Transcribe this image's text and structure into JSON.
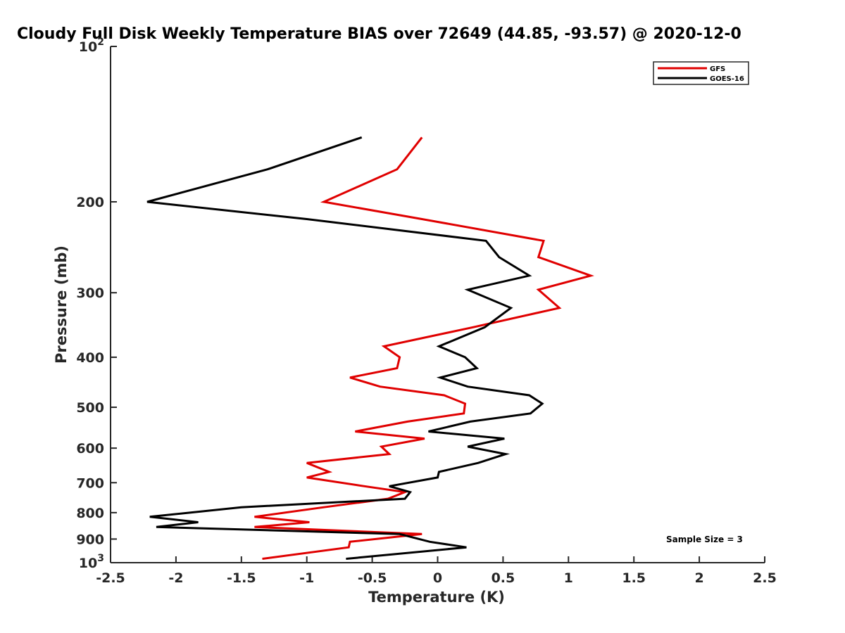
{
  "chart_data": {
    "type": "line",
    "title": "Cloudy Full Disk Weekly Temperature BIAS over 72649 (44.85, -93.57) @ 2020-12-0",
    "xlabel": "Temperature (K)",
    "ylabel": "Pressure (mb)",
    "xlim": [
      -2.5,
      2.5
    ],
    "ylim": [
      100,
      1000
    ],
    "y_scale": "log",
    "y_reversed": true,
    "x_ticks": [
      "-2.5",
      "-2",
      "-1.5",
      "-1",
      "-0.5",
      "0",
      "0.5",
      "1",
      "1.5",
      "2",
      "2.5"
    ],
    "y_ticks": [
      {
        "value": 100,
        "base": "10",
        "exp": "2"
      },
      {
        "value": 200,
        "label": "200"
      },
      {
        "value": 300,
        "label": "300"
      },
      {
        "value": 400,
        "label": "400"
      },
      {
        "value": 500,
        "label": "500"
      },
      {
        "value": 600,
        "label": "600"
      },
      {
        "value": 700,
        "label": "700"
      },
      {
        "value": 800,
        "label": "800"
      },
      {
        "value": 900,
        "label": "900"
      },
      {
        "value": 1000,
        "base": "10",
        "exp": "3"
      }
    ],
    "legend": {
      "placement": "top-right"
    },
    "annotation": "Sample Size = 3",
    "series": [
      {
        "name": "GFS",
        "color": "#e00000",
        "points": [
          [
            -0.12,
            150
          ],
          [
            -0.31,
            173
          ],
          [
            -0.87,
            200
          ],
          [
            -0.12,
            216
          ],
          [
            0.81,
            238
          ],
          [
            0.77,
            256
          ],
          [
            1.17,
            278
          ],
          [
            0.77,
            296
          ],
          [
            0.93,
            321
          ],
          [
            0.27,
            350
          ],
          [
            -0.41,
            381
          ],
          [
            -0.29,
            400
          ],
          [
            -0.31,
            420
          ],
          [
            -0.67,
            438
          ],
          [
            -0.44,
            456
          ],
          [
            0.05,
            474
          ],
          [
            0.21,
            492
          ],
          [
            0.2,
            514
          ],
          [
            -0.23,
            533
          ],
          [
            -0.63,
            557
          ],
          [
            -0.1,
            575
          ],
          [
            -0.43,
            596
          ],
          [
            -0.37,
            616
          ],
          [
            -1.0,
            641
          ],
          [
            -0.83,
            667
          ],
          [
            -1.0,
            684
          ],
          [
            -0.56,
            711
          ],
          [
            -0.25,
            730
          ],
          [
            -0.38,
            752
          ],
          [
            -0.87,
            781
          ],
          [
            -1.4,
            815
          ],
          [
            -0.98,
            835
          ],
          [
            -1.4,
            853
          ],
          [
            -0.12,
            880
          ],
          [
            -0.67,
            911
          ],
          [
            -0.68,
            934
          ],
          [
            -1.34,
            983
          ]
        ]
      },
      {
        "name": "GOES-16",
        "color": "#000000",
        "points": [
          [
            -0.58,
            150
          ],
          [
            -1.3,
            173
          ],
          [
            -2.22,
            200
          ],
          [
            -1.0,
            216
          ],
          [
            0.37,
            238
          ],
          [
            0.47,
            256
          ],
          [
            0.7,
            278
          ],
          [
            0.23,
            296
          ],
          [
            0.56,
            321
          ],
          [
            0.36,
            350
          ],
          [
            0.01,
            381
          ],
          [
            0.21,
            400
          ],
          [
            0.3,
            420
          ],
          [
            0.02,
            438
          ],
          [
            0.23,
            456
          ],
          [
            0.7,
            474
          ],
          [
            0.8,
            492
          ],
          [
            0.71,
            514
          ],
          [
            0.25,
            533
          ],
          [
            -0.07,
            557
          ],
          [
            0.51,
            575
          ],
          [
            0.23,
            596
          ],
          [
            0.52,
            616
          ],
          [
            0.31,
            641
          ],
          [
            0.01,
            667
          ],
          [
            0.0,
            684
          ],
          [
            -0.37,
            711
          ],
          [
            -0.21,
            730
          ],
          [
            -0.25,
            752
          ],
          [
            -1.5,
            781
          ],
          [
            -2.2,
            815
          ],
          [
            -1.83,
            835
          ],
          [
            -2.15,
            853
          ],
          [
            -0.29,
            880
          ],
          [
            -0.06,
            911
          ],
          [
            0.22,
            934
          ],
          [
            -0.7,
            983
          ]
        ]
      }
    ]
  }
}
